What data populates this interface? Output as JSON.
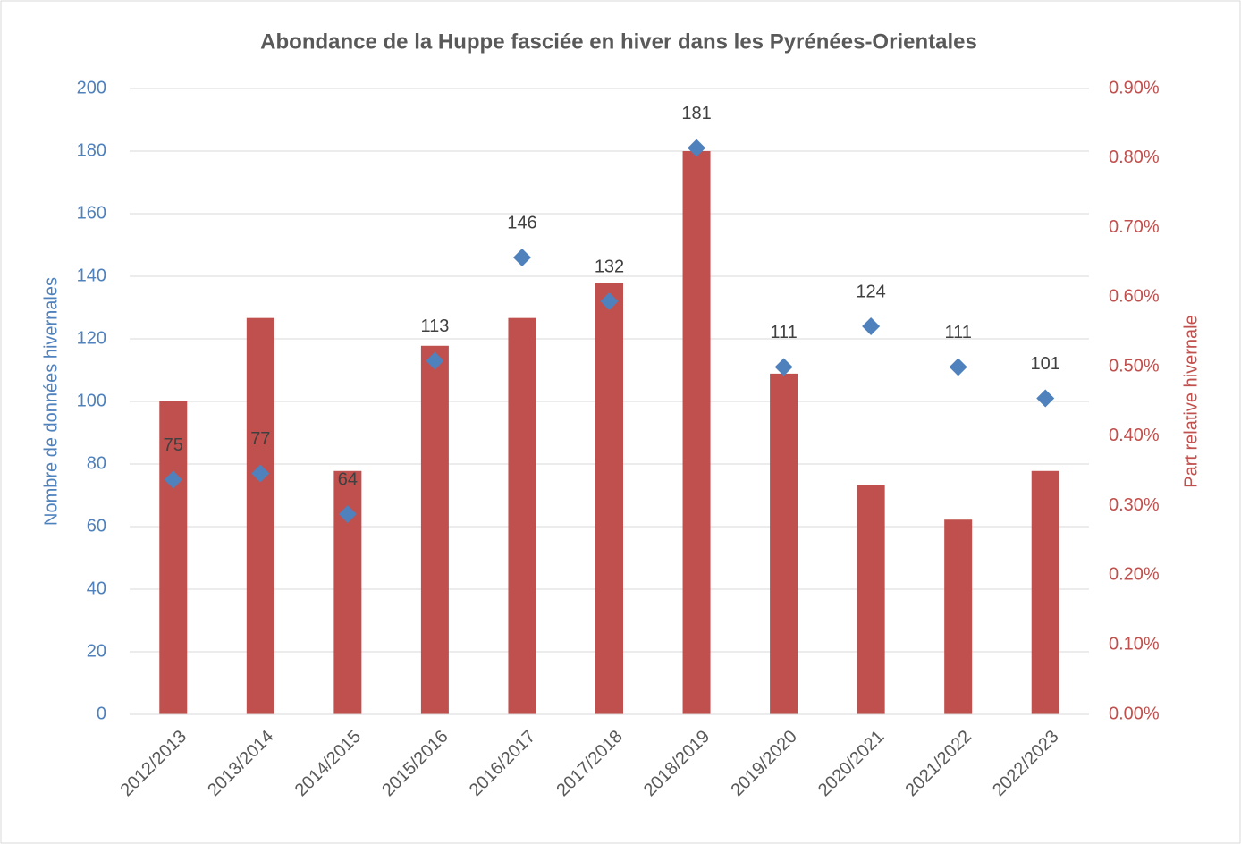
{
  "chart_data": {
    "type": "bar",
    "title": "Abondance de la Huppe fasciée en hiver dans les Pyrénées-Orientales",
    "y_label": "Nombre de données hivernales",
    "y2_label": "Part relative hivernale",
    "categories": [
      "2012/2013",
      "2013/2014",
      "2014/2015",
      "2015/2016",
      "2016/2017",
      "2017/2018",
      "2018/2019",
      "2019/2020",
      "2020/2021",
      "2021/2022",
      "2022/2023"
    ],
    "series": [
      {
        "type": "bar",
        "axis": "y2",
        "color": "#c0504d",
        "values": [
          0.45,
          0.57,
          0.35,
          0.53,
          0.57,
          0.62,
          0.81,
          0.49,
          0.33,
          0.28,
          0.35
        ]
      },
      {
        "type": "scatter",
        "axis": "y",
        "color": "#4f81bd",
        "values": [
          75,
          77,
          64,
          113,
          146,
          132,
          181,
          111,
          124,
          111,
          101
        ]
      }
    ],
    "ylim": [
      0,
      200
    ],
    "yticks": [
      0,
      20,
      40,
      60,
      80,
      100,
      120,
      140,
      160,
      180,
      200
    ],
    "y2lim": [
      0,
      0.9
    ],
    "y2ticks": [
      {
        "value": 0,
        "label": "0.00%"
      },
      {
        "value": 0.1,
        "label": "0.10%"
      },
      {
        "value": 0.2,
        "label": "0.20%"
      },
      {
        "value": 0.3,
        "label": "0.30%"
      },
      {
        "value": 0.4,
        "label": "0.40%"
      },
      {
        "value": 0.5,
        "label": "0.50%"
      },
      {
        "value": 0.6,
        "label": "0.60%"
      },
      {
        "value": 0.7,
        "label": "0.70%"
      },
      {
        "value": 0.8,
        "label": "0.80%"
      },
      {
        "value": 0.9,
        "label": "0.90%"
      }
    ],
    "grid": true
  }
}
